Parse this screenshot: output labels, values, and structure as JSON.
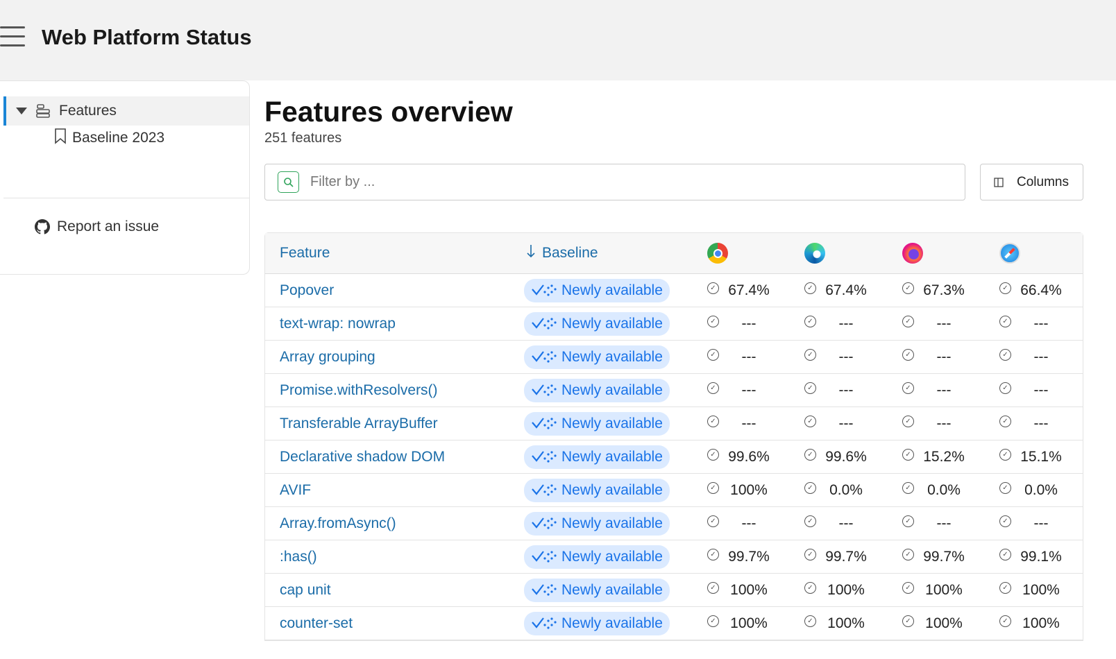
{
  "header": {
    "title": "Web Platform Status"
  },
  "sidebar": {
    "features": "Features",
    "baseline_2023": "Baseline 2023",
    "report": "Report an issue"
  },
  "main": {
    "title": "Features overview",
    "count": "251 features",
    "filter_placeholder": "Filter by ...",
    "columns_label": "Columns"
  },
  "table": {
    "headers": {
      "feature": "Feature",
      "baseline": "Baseline",
      "sort": "descending"
    },
    "browsers": [
      "chrome",
      "edge",
      "firefox",
      "safari"
    ],
    "rows": [
      {
        "name": "Popover",
        "baseline": "Newly available",
        "support": [
          "67.4%",
          "67.4%",
          "67.3%",
          "66.4%"
        ]
      },
      {
        "name": "text-wrap: nowrap",
        "baseline": "Newly available",
        "support": [
          "---",
          "---",
          "---",
          "---"
        ]
      },
      {
        "name": "Array grouping",
        "baseline": "Newly available",
        "support": [
          "---",
          "---",
          "---",
          "---"
        ]
      },
      {
        "name": "Promise.withResolvers()",
        "baseline": "Newly available",
        "support": [
          "---",
          "---",
          "---",
          "---"
        ]
      },
      {
        "name": "Transferable ArrayBuffer",
        "baseline": "Newly available",
        "support": [
          "---",
          "---",
          "---",
          "---"
        ]
      },
      {
        "name": "Declarative shadow DOM",
        "baseline": "Newly available",
        "support": [
          "99.6%",
          "99.6%",
          "15.2%",
          "15.1%"
        ]
      },
      {
        "name": "AVIF",
        "baseline": "Newly available",
        "support": [
          "100%",
          "0.0%",
          "0.0%",
          "0.0%"
        ]
      },
      {
        "name": "Array.fromAsync()",
        "baseline": "Newly available",
        "support": [
          "---",
          "---",
          "---",
          "---"
        ]
      },
      {
        "name": ":has()",
        "baseline": "Newly available",
        "support": [
          "99.7%",
          "99.7%",
          "99.7%",
          "99.1%"
        ]
      },
      {
        "name": "cap unit",
        "baseline": "Newly available",
        "support": [
          "100%",
          "100%",
          "100%",
          "100%"
        ]
      },
      {
        "name": "counter-set",
        "baseline": "Newly available",
        "support": [
          "100%",
          "100%",
          "100%",
          "100%"
        ]
      }
    ]
  },
  "colors": {
    "accent": "#1a85d6",
    "link": "#1b6ca8",
    "badge_bg": "#dbeaff",
    "badge_text": "#1a73e8"
  }
}
